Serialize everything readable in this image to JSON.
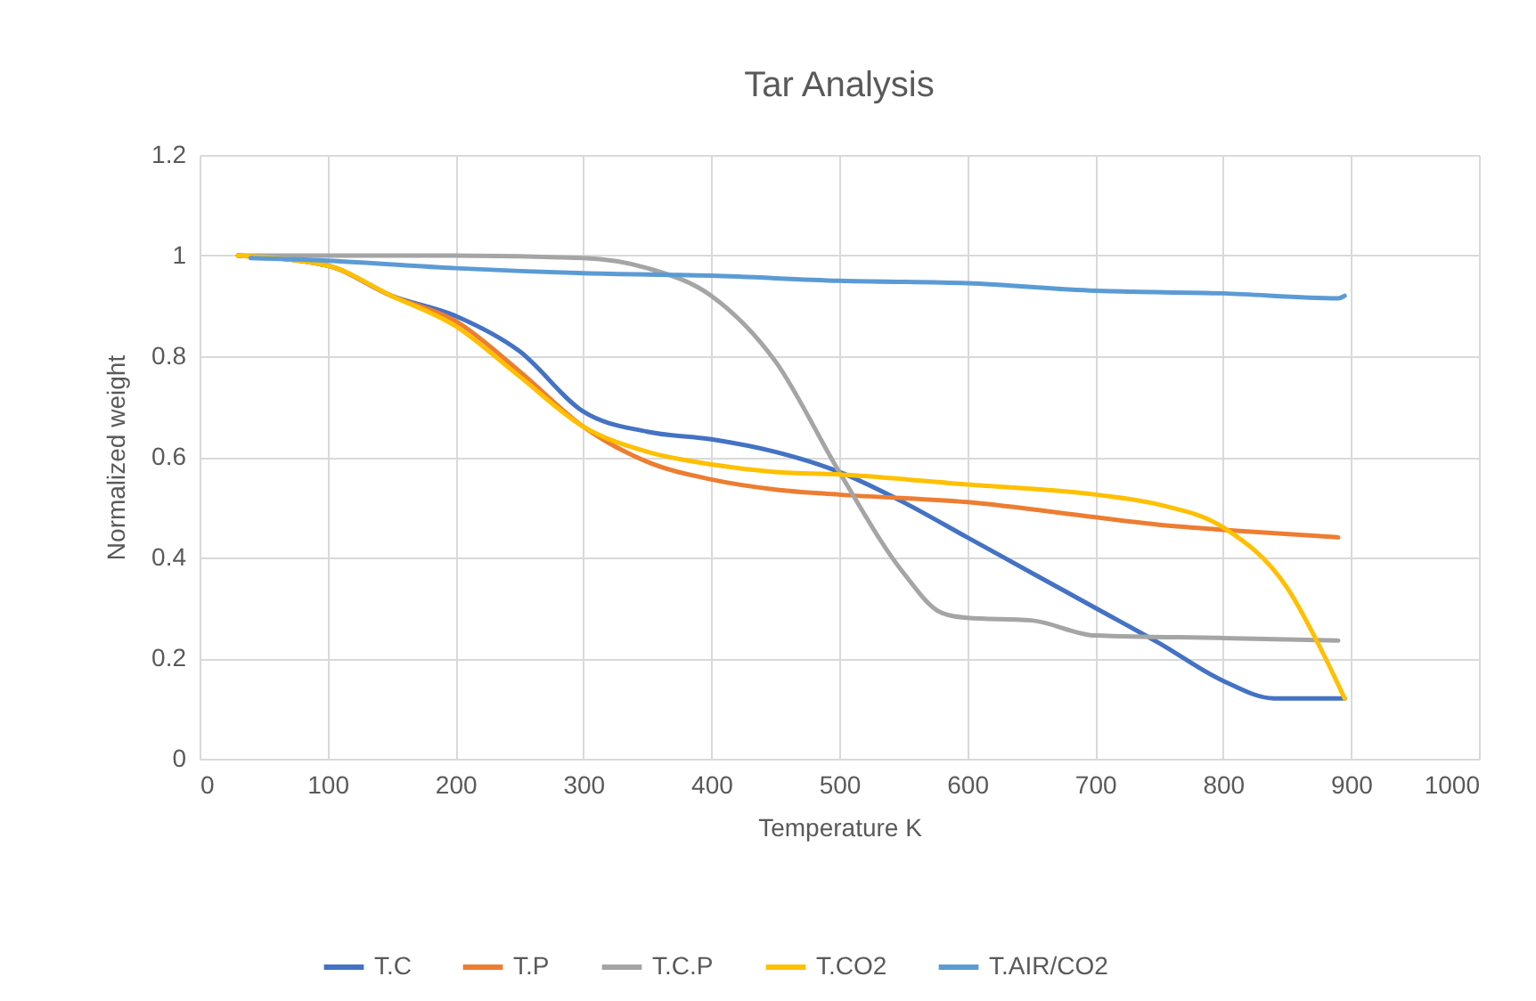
{
  "chart_data": {
    "type": "line",
    "title": "Tar Analysis",
    "xlabel": "Temperature K",
    "ylabel": "Normalized weight",
    "xlim": [
      0,
      1000
    ],
    "xticks": [
      0,
      100,
      200,
      300,
      400,
      500,
      600,
      700,
      800,
      900,
      1000
    ],
    "ylim": [
      0,
      1.2
    ],
    "yticks": [
      0,
      0.2,
      0.4,
      0.6,
      0.8,
      1,
      1.2
    ],
    "grid": true,
    "legend": "bottom",
    "marker": "none",
    "line_style": "solid",
    "series": [
      {
        "name": "T.C",
        "color": "#4472c4",
        "x": [
          30,
          100,
          150,
          200,
          250,
          300,
          350,
          400,
          450,
          500,
          550,
          600,
          650,
          700,
          750,
          800,
          840,
          895
        ],
        "values": [
          1.0,
          0.98,
          0.92,
          0.88,
          0.81,
          0.69,
          0.65,
          0.635,
          0.61,
          0.57,
          0.51,
          0.44,
          0.37,
          0.3,
          0.23,
          0.155,
          0.12,
          0.12
        ]
      },
      {
        "name": "T.P",
        "color": "#ed7d31",
        "x": [
          30,
          100,
          150,
          200,
          250,
          300,
          350,
          400,
          450,
          500,
          600,
          700,
          750,
          800,
          890
        ],
        "values": [
          1.0,
          0.98,
          0.92,
          0.87,
          0.77,
          0.66,
          0.59,
          0.555,
          0.535,
          0.525,
          0.51,
          0.48,
          0.465,
          0.455,
          0.44
        ]
      },
      {
        "name": "T.C.P",
        "color": "#a5a5a5",
        "x": [
          30,
          100,
          200,
          300,
          350,
          400,
          450,
          500,
          550,
          580,
          600,
          650,
          700,
          800,
          890
        ],
        "values": [
          1.0,
          1.0,
          1.0,
          0.995,
          0.975,
          0.92,
          0.79,
          0.57,
          0.37,
          0.29,
          0.28,
          0.275,
          0.245,
          0.24,
          0.235
        ]
      },
      {
        "name": "T.CO2",
        "color": "#ffc000",
        "x": [
          30,
          100,
          150,
          200,
          250,
          300,
          350,
          400,
          450,
          500,
          600,
          700,
          750,
          800,
          850,
          880,
          895
        ],
        "values": [
          1.0,
          0.98,
          0.92,
          0.86,
          0.76,
          0.66,
          0.61,
          0.585,
          0.57,
          0.565,
          0.545,
          0.525,
          0.505,
          0.46,
          0.34,
          0.2,
          0.12
        ]
      },
      {
        "name": "T.AIR/CO2",
        "color": "#5b9bd5",
        "x": [
          40,
          100,
          200,
          300,
          400,
          500,
          600,
          700,
          800,
          890,
          895
        ],
        "values": [
          0.995,
          0.99,
          0.975,
          0.965,
          0.96,
          0.95,
          0.945,
          0.93,
          0.925,
          0.915,
          0.92
        ]
      }
    ]
  }
}
